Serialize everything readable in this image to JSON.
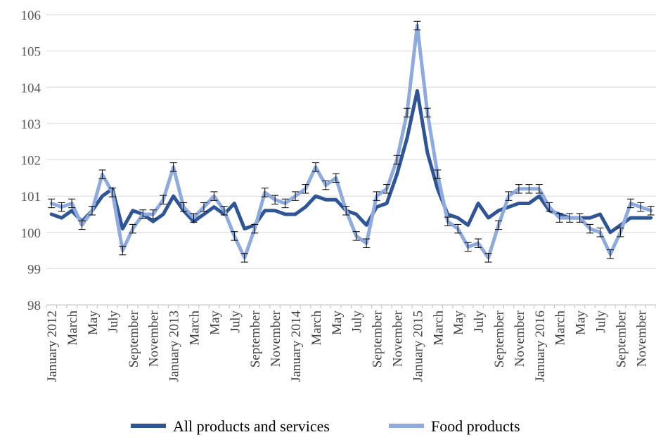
{
  "chart_data": {
    "type": "line",
    "title": "",
    "xlabel": "",
    "ylabel": "",
    "ylim": [
      98,
      106
    ],
    "yticks": [
      98,
      99,
      100,
      101,
      102,
      103,
      104,
      105,
      106
    ],
    "grid": true,
    "legend_position": "bottom",
    "error_bars": true,
    "x": [
      "January 2012",
      "February",
      "March",
      "April",
      "May",
      "June",
      "July",
      "August",
      "September",
      "October",
      "November",
      "December",
      "January 2013",
      "February",
      "March",
      "April",
      "May",
      "June",
      "July",
      "August",
      "September",
      "October",
      "November",
      "December",
      "January 2014",
      "February",
      "March",
      "April",
      "May",
      "June",
      "July",
      "August",
      "September",
      "October",
      "November",
      "December",
      "January 2015",
      "February",
      "March",
      "April",
      "May",
      "June",
      "July",
      "August",
      "September",
      "October",
      "November",
      "December",
      "January 2016",
      "February",
      "March",
      "April",
      "May",
      "June",
      "July",
      "August",
      "September",
      "October",
      "November",
      "December"
    ],
    "x_tick_labels": [
      "January 2012",
      "",
      "March",
      "",
      "May",
      "",
      "July",
      "",
      "September",
      "",
      "November",
      "",
      "January 2013",
      "",
      "March",
      "",
      "May",
      "",
      "July",
      "",
      "September",
      "",
      "November",
      "",
      "January 2014",
      "",
      "March",
      "",
      "May",
      "",
      "July",
      "",
      "September",
      "",
      "November",
      "",
      "January 2015",
      "",
      "March",
      "",
      "May",
      "",
      "July",
      "",
      "September",
      "",
      "November",
      "",
      "January 2016",
      "",
      "March",
      "",
      "May",
      "",
      "July",
      "",
      "September",
      "",
      "November",
      ""
    ],
    "series": [
      {
        "name": "All products and services",
        "color": "#2f5597",
        "values": [
          100.5,
          100.4,
          100.6,
          100.3,
          100.6,
          101.0,
          101.2,
          100.1,
          100.6,
          100.5,
          100.3,
          100.5,
          101.0,
          100.6,
          100.3,
          100.5,
          100.7,
          100.5,
          100.8,
          100.1,
          100.2,
          100.6,
          100.6,
          100.5,
          100.5,
          100.7,
          101.0,
          100.9,
          100.9,
          100.6,
          100.5,
          100.2,
          100.7,
          100.8,
          101.6,
          102.6,
          103.9,
          102.2,
          101.2,
          100.5,
          100.4,
          100.2,
          100.8,
          100.4,
          100.6,
          100.7,
          100.8,
          100.8,
          101.0,
          100.6,
          100.5,
          100.4,
          100.4,
          100.4,
          100.5,
          100.0,
          100.2,
          100.4,
          100.4,
          100.4
        ]
      },
      {
        "name": "Food products",
        "color": "#8faadc",
        "values": [
          100.8,
          100.7,
          100.8,
          100.2,
          100.6,
          101.6,
          101.1,
          99.5,
          100.1,
          100.5,
          100.5,
          100.9,
          101.8,
          100.7,
          100.4,
          100.7,
          101.0,
          100.6,
          99.9,
          99.3,
          100.1,
          101.1,
          100.9,
          100.8,
          101.0,
          101.2,
          101.8,
          101.3,
          101.5,
          100.6,
          99.9,
          99.7,
          101.0,
          101.2,
          102.0,
          103.3,
          105.7,
          103.3,
          101.6,
          100.3,
          100.1,
          99.6,
          99.7,
          99.3,
          100.2,
          101.0,
          101.2,
          101.2,
          101.2,
          100.7,
          100.4,
          100.4,
          100.4,
          100.1,
          100.0,
          99.4,
          100.0,
          100.8,
          100.7,
          100.6
        ]
      }
    ]
  }
}
